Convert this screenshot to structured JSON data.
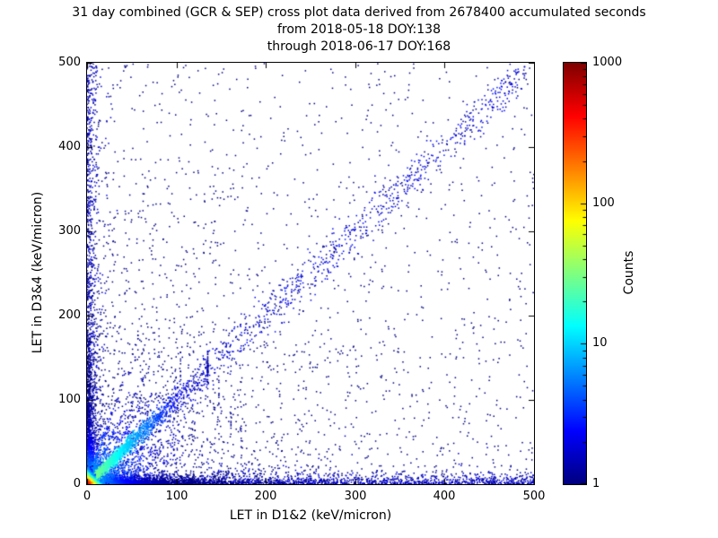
{
  "chart_data": {
    "type": "scatter",
    "title_lines": [
      "31 day combined (GCR & SEP) cross plot data derived from 2678400 accumulated seconds",
      "from 2018-05-18 DOY:138",
      "through 2018-06-17 DOY:168"
    ],
    "xlabel": "LET in D1&2 (keV/micron)",
    "ylabel": "LET in D3&4 (keV/micron)",
    "xlim": [
      0,
      500
    ],
    "ylim": [
      0,
      500
    ],
    "x_ticks": [
      0,
      100,
      200,
      300,
      400,
      500
    ],
    "y_ticks": [
      0,
      100,
      200,
      300,
      400,
      500
    ],
    "grid": false,
    "colorbar": {
      "label": "Counts",
      "scale": "log",
      "min": 1,
      "max": 1000,
      "ticks": [
        1,
        10,
        100,
        1000
      ],
      "colormap": "jet",
      "low_color": "#00007f",
      "high_color": "#7f0000"
    },
    "density_features": [
      {
        "name": "background-scatter",
        "kind": "mix",
        "n": 2300,
        "uniform_frac": 0.42,
        "exp_mean": 150
      },
      {
        "name": "bottom-band",
        "kind": "band",
        "axis": "x",
        "cross_mean": 5,
        "n": 1400
      },
      {
        "name": "left-band",
        "kind": "band",
        "axis": "y",
        "cross_mean": 5,
        "n": 800
      },
      {
        "name": "bottom-gradient",
        "kind": "exp2d",
        "mean_x": 70,
        "mean_y": 4.5,
        "n": 2200,
        "count_scale": 12,
        "count_falloff": 22
      },
      {
        "name": "left-gradient",
        "kind": "exp2d",
        "mean_x": 4.5,
        "mean_y": 70,
        "n": 1300,
        "count_scale": 12,
        "count_falloff": 22
      },
      {
        "name": "diagonal-band",
        "kind": "diag",
        "t_min": 40,
        "t_max": 490,
        "spread": 13,
        "n": 950
      },
      {
        "name": "fan-rays",
        "kind": "fan",
        "slopes": [
          0.3,
          0.5,
          0.7,
          1.4,
          2.0,
          3.0
        ],
        "n_per": 180,
        "mean_len": 55,
        "max_len": 180,
        "spread": 1.8,
        "spread_growth": 0.05,
        "count_scale": 8,
        "count_falloff": 45
      },
      {
        "name": "main-diagonal-ridge",
        "kind": "ray",
        "slope": 1.0,
        "n": 1900,
        "mean_len": 38,
        "max_len": 135,
        "spread": 2.2,
        "spread_growth": 0.05,
        "count_scale": 40,
        "count_falloff": 30
      },
      {
        "name": "origin-hotspot",
        "kind": "exp2d",
        "mean_x": 3,
        "mean_y": 3,
        "n": 1700,
        "count_scale": 1000,
        "count_falloff": 3.5,
        "size": 1.8
      }
    ]
  }
}
